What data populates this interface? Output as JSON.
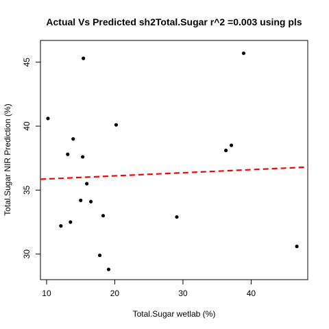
{
  "chart_data": {
    "type": "scatter",
    "title": "Actual Vs Predicted sh2Total.Sugar r^2 =0.003 using pls",
    "xlabel": "Total.Sugar wetlab (%)",
    "ylabel": "Total.Sugar NIR Prediction (%)",
    "xlim": [
      9.1,
      48.3
    ],
    "ylim": [
      28.0,
      46.7
    ],
    "x_ticks": [
      10,
      20,
      30,
      40
    ],
    "y_ticks": [
      30,
      35,
      40,
      45
    ],
    "points": [
      {
        "x": 10.2,
        "y": 40.6
      },
      {
        "x": 12.1,
        "y": 32.2
      },
      {
        "x": 13.1,
        "y": 37.8
      },
      {
        "x": 13.5,
        "y": 32.5
      },
      {
        "x": 13.9,
        "y": 39.0
      },
      {
        "x": 15.0,
        "y": 34.2
      },
      {
        "x": 15.3,
        "y": 37.6
      },
      {
        "x": 15.4,
        "y": 45.3
      },
      {
        "x": 15.9,
        "y": 35.5
      },
      {
        "x": 16.5,
        "y": 34.1
      },
      {
        "x": 17.8,
        "y": 29.9
      },
      {
        "x": 18.3,
        "y": 33.0
      },
      {
        "x": 19.1,
        "y": 28.8
      },
      {
        "x": 20.2,
        "y": 40.1
      },
      {
        "x": 29.1,
        "y": 32.9
      },
      {
        "x": 36.3,
        "y": 38.1
      },
      {
        "x": 37.1,
        "y": 38.5
      },
      {
        "x": 38.9,
        "y": 45.7
      },
      {
        "x": 46.7,
        "y": 30.6
      }
    ],
    "fit_line": {
      "x": [
        9.1,
        48.3
      ],
      "y": [
        35.85,
        36.8
      ],
      "color": "#ff0000",
      "style": "dashed"
    },
    "grid": false,
    "point_color": "#000000"
  }
}
